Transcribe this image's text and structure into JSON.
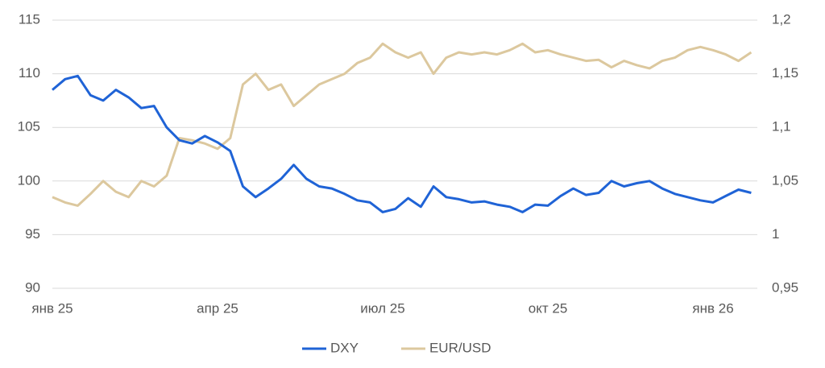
{
  "chart_data": {
    "type": "line",
    "categories": [
      "янв 25",
      null,
      null,
      null,
      null,
      null,
      null,
      null,
      null,
      null,
      null,
      null,
      null,
      "апр 25",
      null,
      null,
      null,
      null,
      null,
      null,
      null,
      null,
      null,
      null,
      null,
      null,
      "июл 25",
      null,
      null,
      null,
      null,
      null,
      null,
      null,
      null,
      null,
      null,
      null,
      null,
      "окт 25",
      null,
      null,
      null,
      null,
      null,
      null,
      null,
      null,
      null,
      null,
      null,
      null,
      "янв 26",
      null,
      null,
      null
    ],
    "series": [
      {
        "name": "DXY",
        "color": "#1f63d6",
        "values": [
          108.5,
          109.5,
          109.8,
          108,
          107.5,
          108.5,
          107.8,
          106.8,
          107,
          105,
          103.8,
          103.5,
          104.2,
          103.6,
          102.8,
          99.5,
          98.5,
          99.3,
          100.2,
          101.5,
          100.2,
          99.5,
          99.3,
          98.8,
          98.2,
          98,
          97.1,
          97.4,
          98.4,
          97.6,
          99.5,
          98.5,
          98.3,
          98,
          98.1,
          97.8,
          97.6,
          97.1,
          97.8,
          97.7,
          98.6,
          99.3,
          98.7,
          98.9,
          100,
          99.5,
          99.8,
          100,
          99.3,
          98.8,
          98.5,
          98.2,
          98,
          98.6,
          99.2,
          98.9
        ]
      },
      {
        "name": "EUR/USD",
        "color": "#dcc89e",
        "axis": "y2",
        "values": [
          1.035,
          1.03,
          1.027,
          1.038,
          1.05,
          1.04,
          1.035,
          1.05,
          1.045,
          1.055,
          1.09,
          1.088,
          1.085,
          1.08,
          1.09,
          1.14,
          1.15,
          1.135,
          1.14,
          1.12,
          1.13,
          1.14,
          1.145,
          1.15,
          1.16,
          1.165,
          1.178,
          1.17,
          1.165,
          1.17,
          1.15,
          1.165,
          1.17,
          1.168,
          1.17,
          1.168,
          1.172,
          1.178,
          1.17,
          1.172,
          1.168,
          1.165,
          1.162,
          1.163,
          1.156,
          1.162,
          1.158,
          1.155,
          1.162,
          1.165,
          1.172,
          1.175,
          1.172,
          1.168,
          1.162,
          1.17
        ]
      }
    ],
    "ylim": [
      90,
      115
    ],
    "yticks": [
      90,
      95,
      100,
      105,
      110,
      115
    ],
    "y2lim": [
      0.95,
      1.2
    ],
    "y2ticks": [
      {
        "value": 0.95,
        "label": "0,95"
      },
      1,
      {
        "value": 1.05,
        "label": "1,05"
      },
      {
        "value": 1.1,
        "label": "1,1"
      },
      {
        "value": 1.15,
        "label": "1,15"
      },
      {
        "value": 1.2,
        "label": "1,2"
      }
    ],
    "grid": true,
    "legend": "bottom"
  }
}
